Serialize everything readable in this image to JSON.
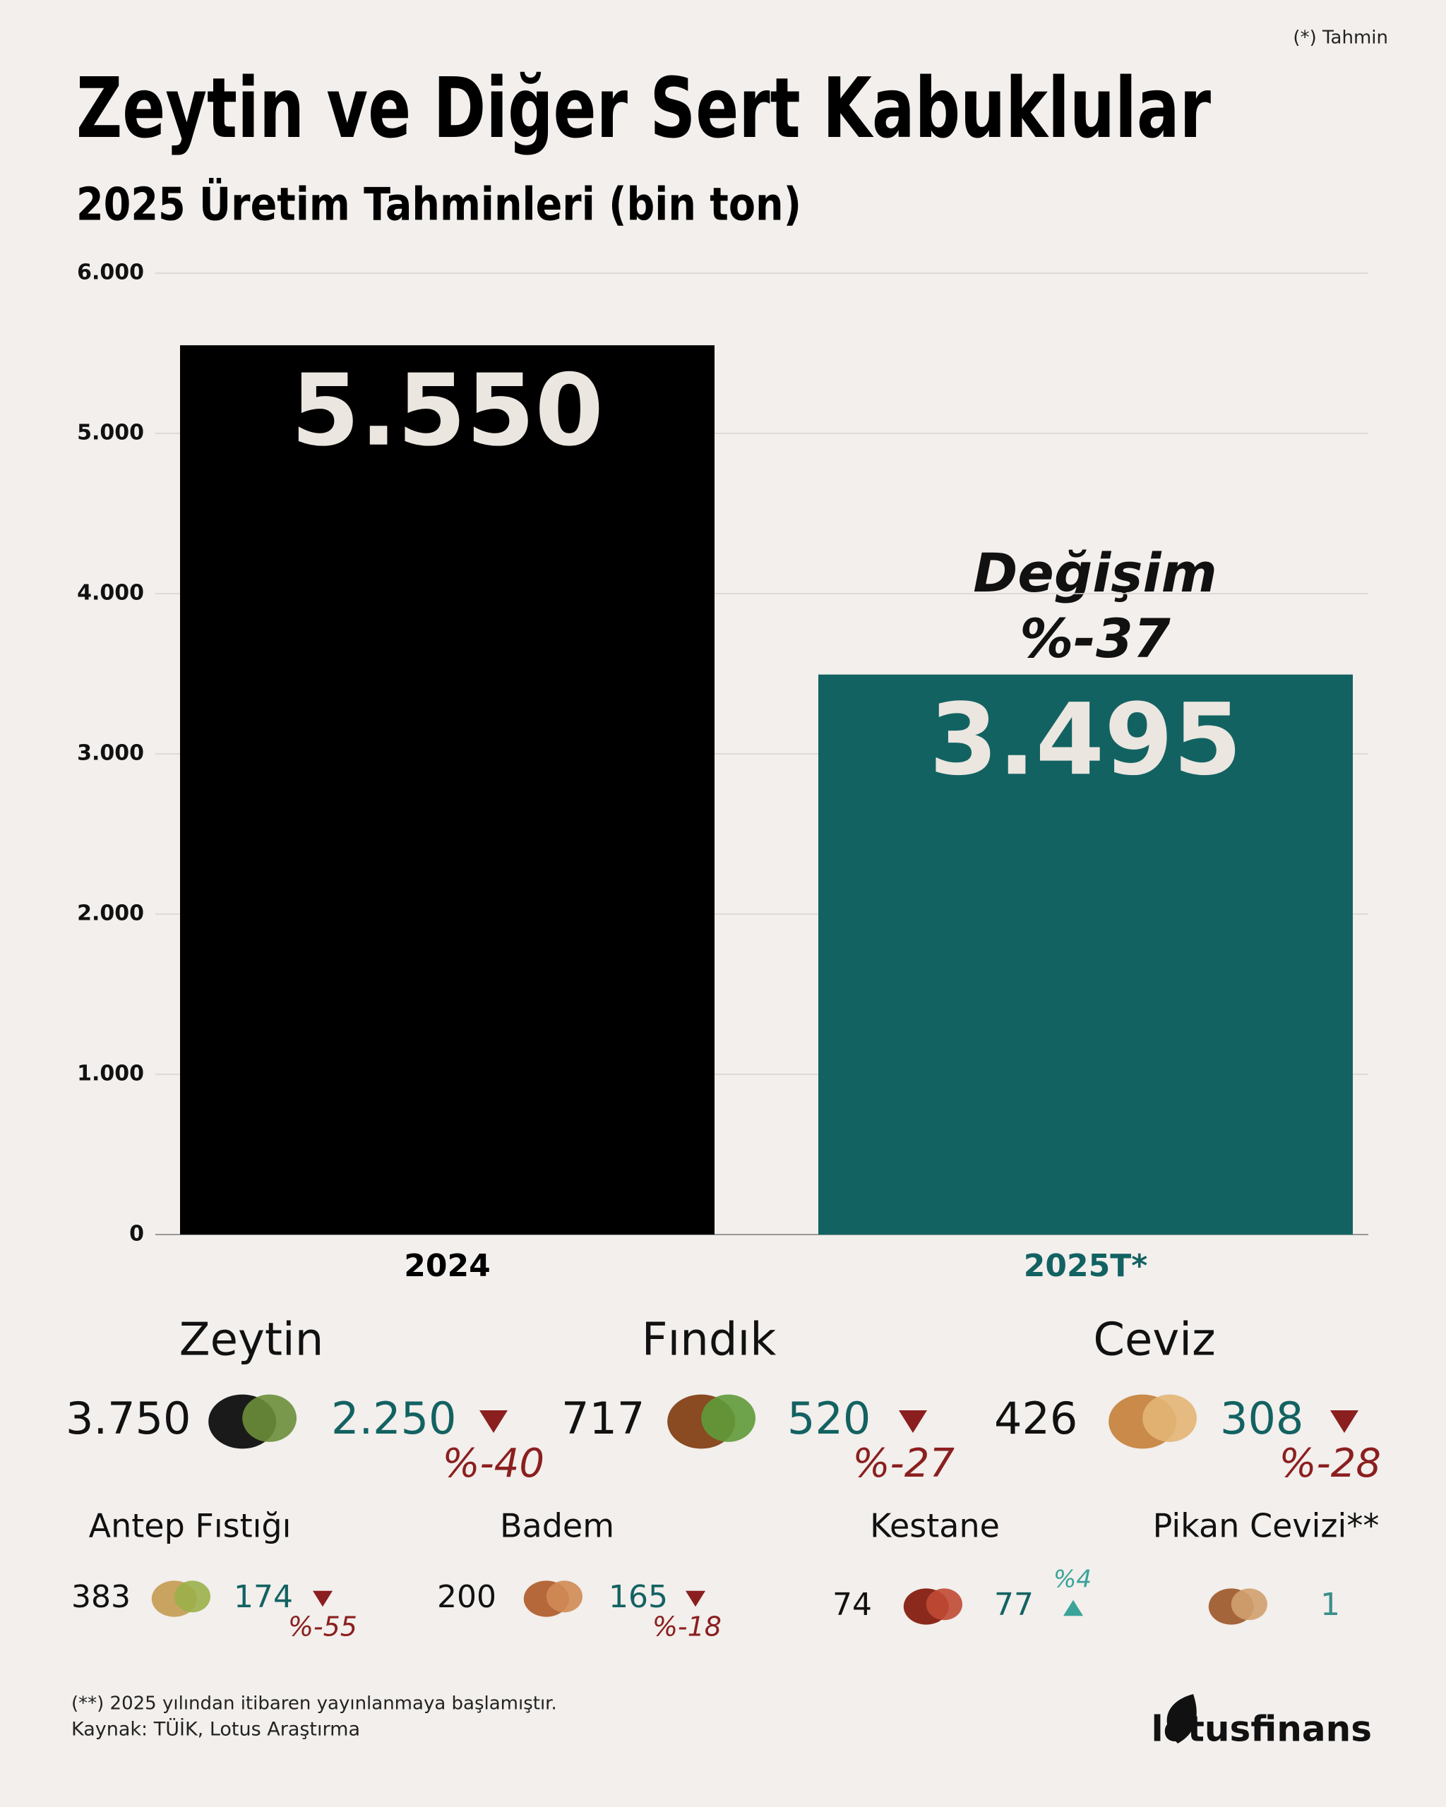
{
  "note": "(*) Tahmin",
  "chart_data": {
    "type": "bar",
    "title": "Zeytin ve Diğer Sert Kabuklular",
    "subtitle": "2025 Üretim Tahminleri (bin ton)",
    "categories": [
      "2024",
      "2025T*"
    ],
    "values": [
      5550,
      3495
    ],
    "value_labels": [
      "5.550",
      "3.495"
    ],
    "colors": [
      "#000000",
      "#136262"
    ],
    "ylim": [
      0,
      6000
    ],
    "yticks": [
      0,
      {
        "value": 1000,
        "label": "1.000"
      },
      {
        "value": 2000,
        "label": "2.000"
      },
      {
        "value": 3000,
        "label": "3.000"
      },
      {
        "value": 4000,
        "label": "4.000"
      },
      {
        "value": 5000,
        "label": "5.000"
      },
      {
        "value": 6000,
        "label": "6.000"
      }
    ],
    "grid": true,
    "annotation": [
      "Değişim",
      "%-37"
    ]
  },
  "items": [
    {
      "name": "Zeytin",
      "v2024": "3.750",
      "v2025": "2.250",
      "change": "%-40",
      "direction": "down"
    },
    {
      "name": "Fındık",
      "v2024": "717",
      "v2025": "520",
      "change": "%-27",
      "direction": "down"
    },
    {
      "name": "Ceviz",
      "v2024": "426",
      "v2025": "308",
      "change": "%-28",
      "direction": "down"
    },
    {
      "name": "Antep Fıstığı",
      "v2024": "383",
      "v2025": "174",
      "change": "%-55",
      "direction": "down"
    },
    {
      "name": "Badem",
      "v2024": "200",
      "v2025": "165",
      "change": "%-18",
      "direction": "down"
    },
    {
      "name": "Kestane",
      "v2024": "74",
      "v2025": "77",
      "change": "%4",
      "direction": "up"
    },
    {
      "name": "Pikan Cevizi**",
      "v2025": "1"
    }
  ],
  "footnote": "(**) 2025 yılından itibaren yayınlanmaya başlamıştır.",
  "source": "Kaynak: TÜİK, Lotus Araştırma",
  "logo": "lotusfinans"
}
